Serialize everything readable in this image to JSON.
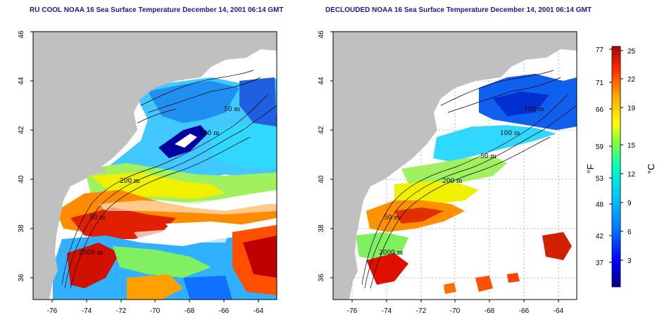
{
  "titles": {
    "left": "RU COOL NOAA 16 Sea Surface Temperature December 14, 2001 06:14 GMT",
    "right": "DECLOUDED NOAA 16 Sea Surface Temperature December 14, 2001 06:14 GMT"
  },
  "axes": {
    "lon_ticks": [
      "-76",
      "-74",
      "-72",
      "-70",
      "-68",
      "-66",
      "-64"
    ],
    "lat_ticks": [
      "36",
      "38",
      "40",
      "42",
      "44",
      "46"
    ]
  },
  "contour_labels": {
    "left": [
      "50 m",
      "100 m",
      "200 m",
      "50 m",
      "2000 m"
    ],
    "right": [
      "100 m",
      "100 m",
      "50 m",
      "200 m",
      "50 m",
      "2000 m"
    ]
  },
  "colorbar": {
    "fahrenheit_ticks": [
      "77",
      "71",
      "66",
      "59",
      "53",
      "48",
      "42",
      "37"
    ],
    "celsius_ticks": [
      "25",
      "22",
      "19",
      "15",
      "12",
      "9",
      "6",
      "3"
    ],
    "fahrenheit_unit": "°F",
    "celsius_unit": "°C",
    "colors": [
      "#00008b",
      "#0000ff",
      "#0080ff",
      "#00c8ff",
      "#00ffc0",
      "#80ff40",
      "#ffff00",
      "#ffa000",
      "#ff3000",
      "#b00000"
    ]
  },
  "colors": {
    "land": "#c0c0c0",
    "title": "#1a1a9a",
    "grid": "#a0a0a0"
  }
}
